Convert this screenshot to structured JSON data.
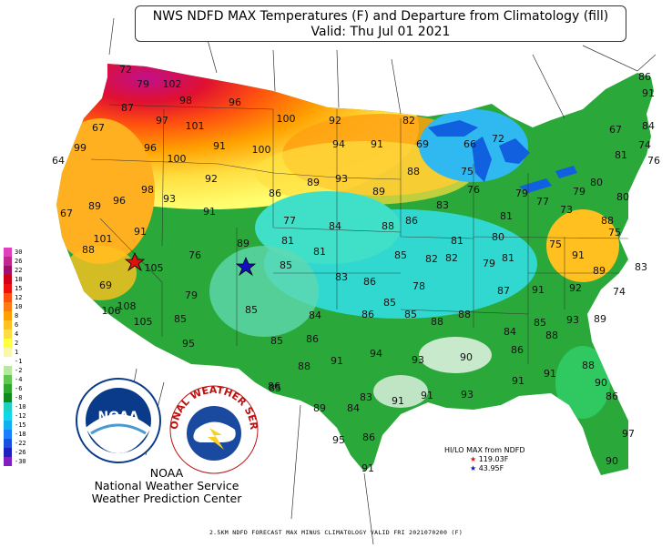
{
  "title": {
    "line1": "NWS NDFD MAX Temperatures (F) and Departure from Climatology (fill)",
    "line2": "Valid: Thu Jul 01 2021"
  },
  "legend": {
    "levels": [
      "30",
      "26",
      "22",
      "18",
      "15",
      "12",
      "10",
      "8",
      "6",
      "4",
      "2",
      "1",
      "-1",
      "-2",
      "-4",
      "-6",
      "-8",
      "-10",
      "-12",
      "-15",
      "-18",
      "-22",
      "-26",
      "-30"
    ],
    "colors": [
      "#e040c0",
      "#c02890",
      "#a0106a",
      "#d00018",
      "#ee1010",
      "#ff5010",
      "#ff7a10",
      "#ffa000",
      "#ffc020",
      "#ffdd40",
      "#ffff40",
      "#f8f8a8",
      "#ffffff",
      "#b8e8a0",
      "#60c850",
      "#30a830",
      "#108a18",
      "#20d0c0",
      "#10d8e8",
      "#10b0f0",
      "#1880ff",
      "#1850e0",
      "#2020c0",
      "#8020c0"
    ]
  },
  "temperatures": [
    "72",
    "79",
    "102",
    "98",
    "96",
    "87",
    "97",
    "101",
    "100",
    "92",
    "82",
    "67",
    "99",
    "96",
    "91",
    "100",
    "94",
    "91",
    "69",
    "66",
    "72",
    "64",
    "100",
    "92",
    "88",
    "75",
    "89",
    "93",
    "89",
    "67",
    "96",
    "98",
    "93",
    "86",
    "76",
    "79",
    "77",
    "73",
    "89",
    "91",
    "77",
    "84",
    "88",
    "86",
    "83",
    "81",
    "101",
    "91",
    "89",
    "81",
    "81",
    "85",
    "81",
    "80",
    "75",
    "88",
    "105",
    "76",
    "85",
    "82",
    "82",
    "79",
    "81",
    "91",
    "83",
    "83",
    "86",
    "78",
    "69",
    "108",
    "79",
    "85",
    "85",
    "87",
    "91",
    "92",
    "89",
    "74",
    "106",
    "105",
    "85",
    "84",
    "86",
    "85",
    "88",
    "88",
    "85",
    "93",
    "89",
    "84",
    "88",
    "95",
    "85",
    "86",
    "94",
    "93",
    "91",
    "90",
    "86",
    "88",
    "91",
    "91",
    "88",
    "85",
    "83",
    "84",
    "91",
    "91",
    "93",
    "90",
    "89",
    "86",
    "95",
    "91",
    "86",
    "97",
    "90",
    "86",
    "86",
    "91",
    "84",
    "67",
    "74",
    "81",
    "76",
    "80",
    "79",
    "80",
    "88",
    "75",
    "85",
    "85",
    "90",
    "93",
    "81"
  ],
  "hilo": {
    "title": "HI/LO MAX from NDFD",
    "hi": "119.03F",
    "lo": "43.95F"
  },
  "credits": {
    "line1": "NOAA",
    "line2": "National Weather Service",
    "line3": "Weather Prediction Center"
  },
  "logos": {
    "noaa_text": "NOAA",
    "nws_arc": "NATIONAL WEATHER SERVICE"
  },
  "footer": "2.5KM NDFD FORECAST MAX MINUS CLIMATOLOGY VALID FRI 2021070200 (F)"
}
